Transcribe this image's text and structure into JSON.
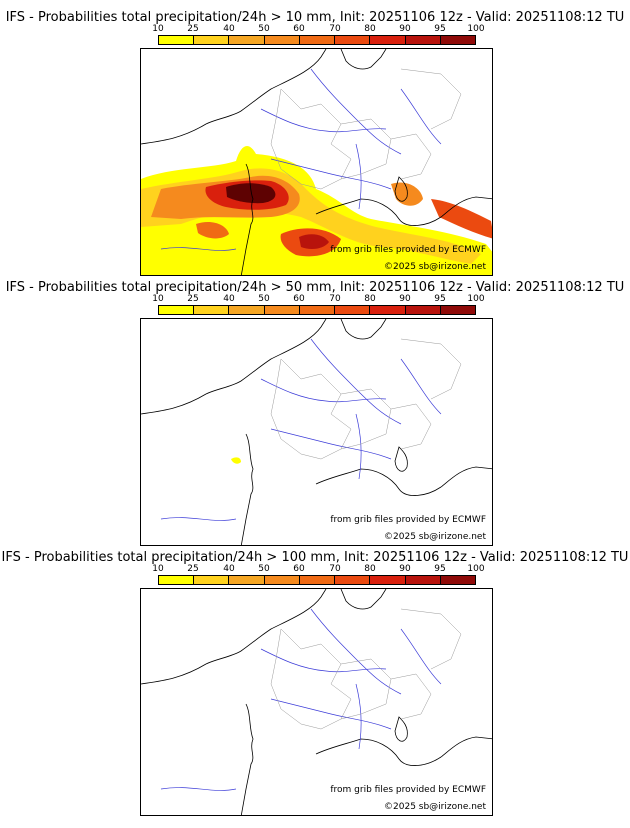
{
  "colorbar": {
    "ticks": [
      "10",
      "25",
      "40",
      "50",
      "60",
      "70",
      "80",
      "90",
      "95",
      "100"
    ],
    "colors": [
      "#ffff00",
      "#ffd21e",
      "#f5a623",
      "#f58a1e",
      "#f06a14",
      "#eb4a10",
      "#d9200d",
      "#b8130c",
      "#8f0a08",
      "#5e0202"
    ]
  },
  "credits": {
    "source": "from grib files provided by ECMWF",
    "copyright": "©2025 sb@irizone.net"
  },
  "panels": [
    {
      "title": "IFS - Probabilities total precipitation/24h > 10 mm, Init: 20251106 12z - Valid: 20251108:12 TU",
      "threshold_mm": 10
    },
    {
      "title": "IFS - Probabilities total precipitation/24h > 50 mm, Init: 20251106 12z - Valid: 20251108:12 TU",
      "threshold_mm": 50
    },
    {
      "title": "IFS - Probabilities total precipitation/24h > 100 mm, Init: 20251106 12z - Valid: 20251108:12 TU",
      "threshold_mm": 100
    }
  ]
}
